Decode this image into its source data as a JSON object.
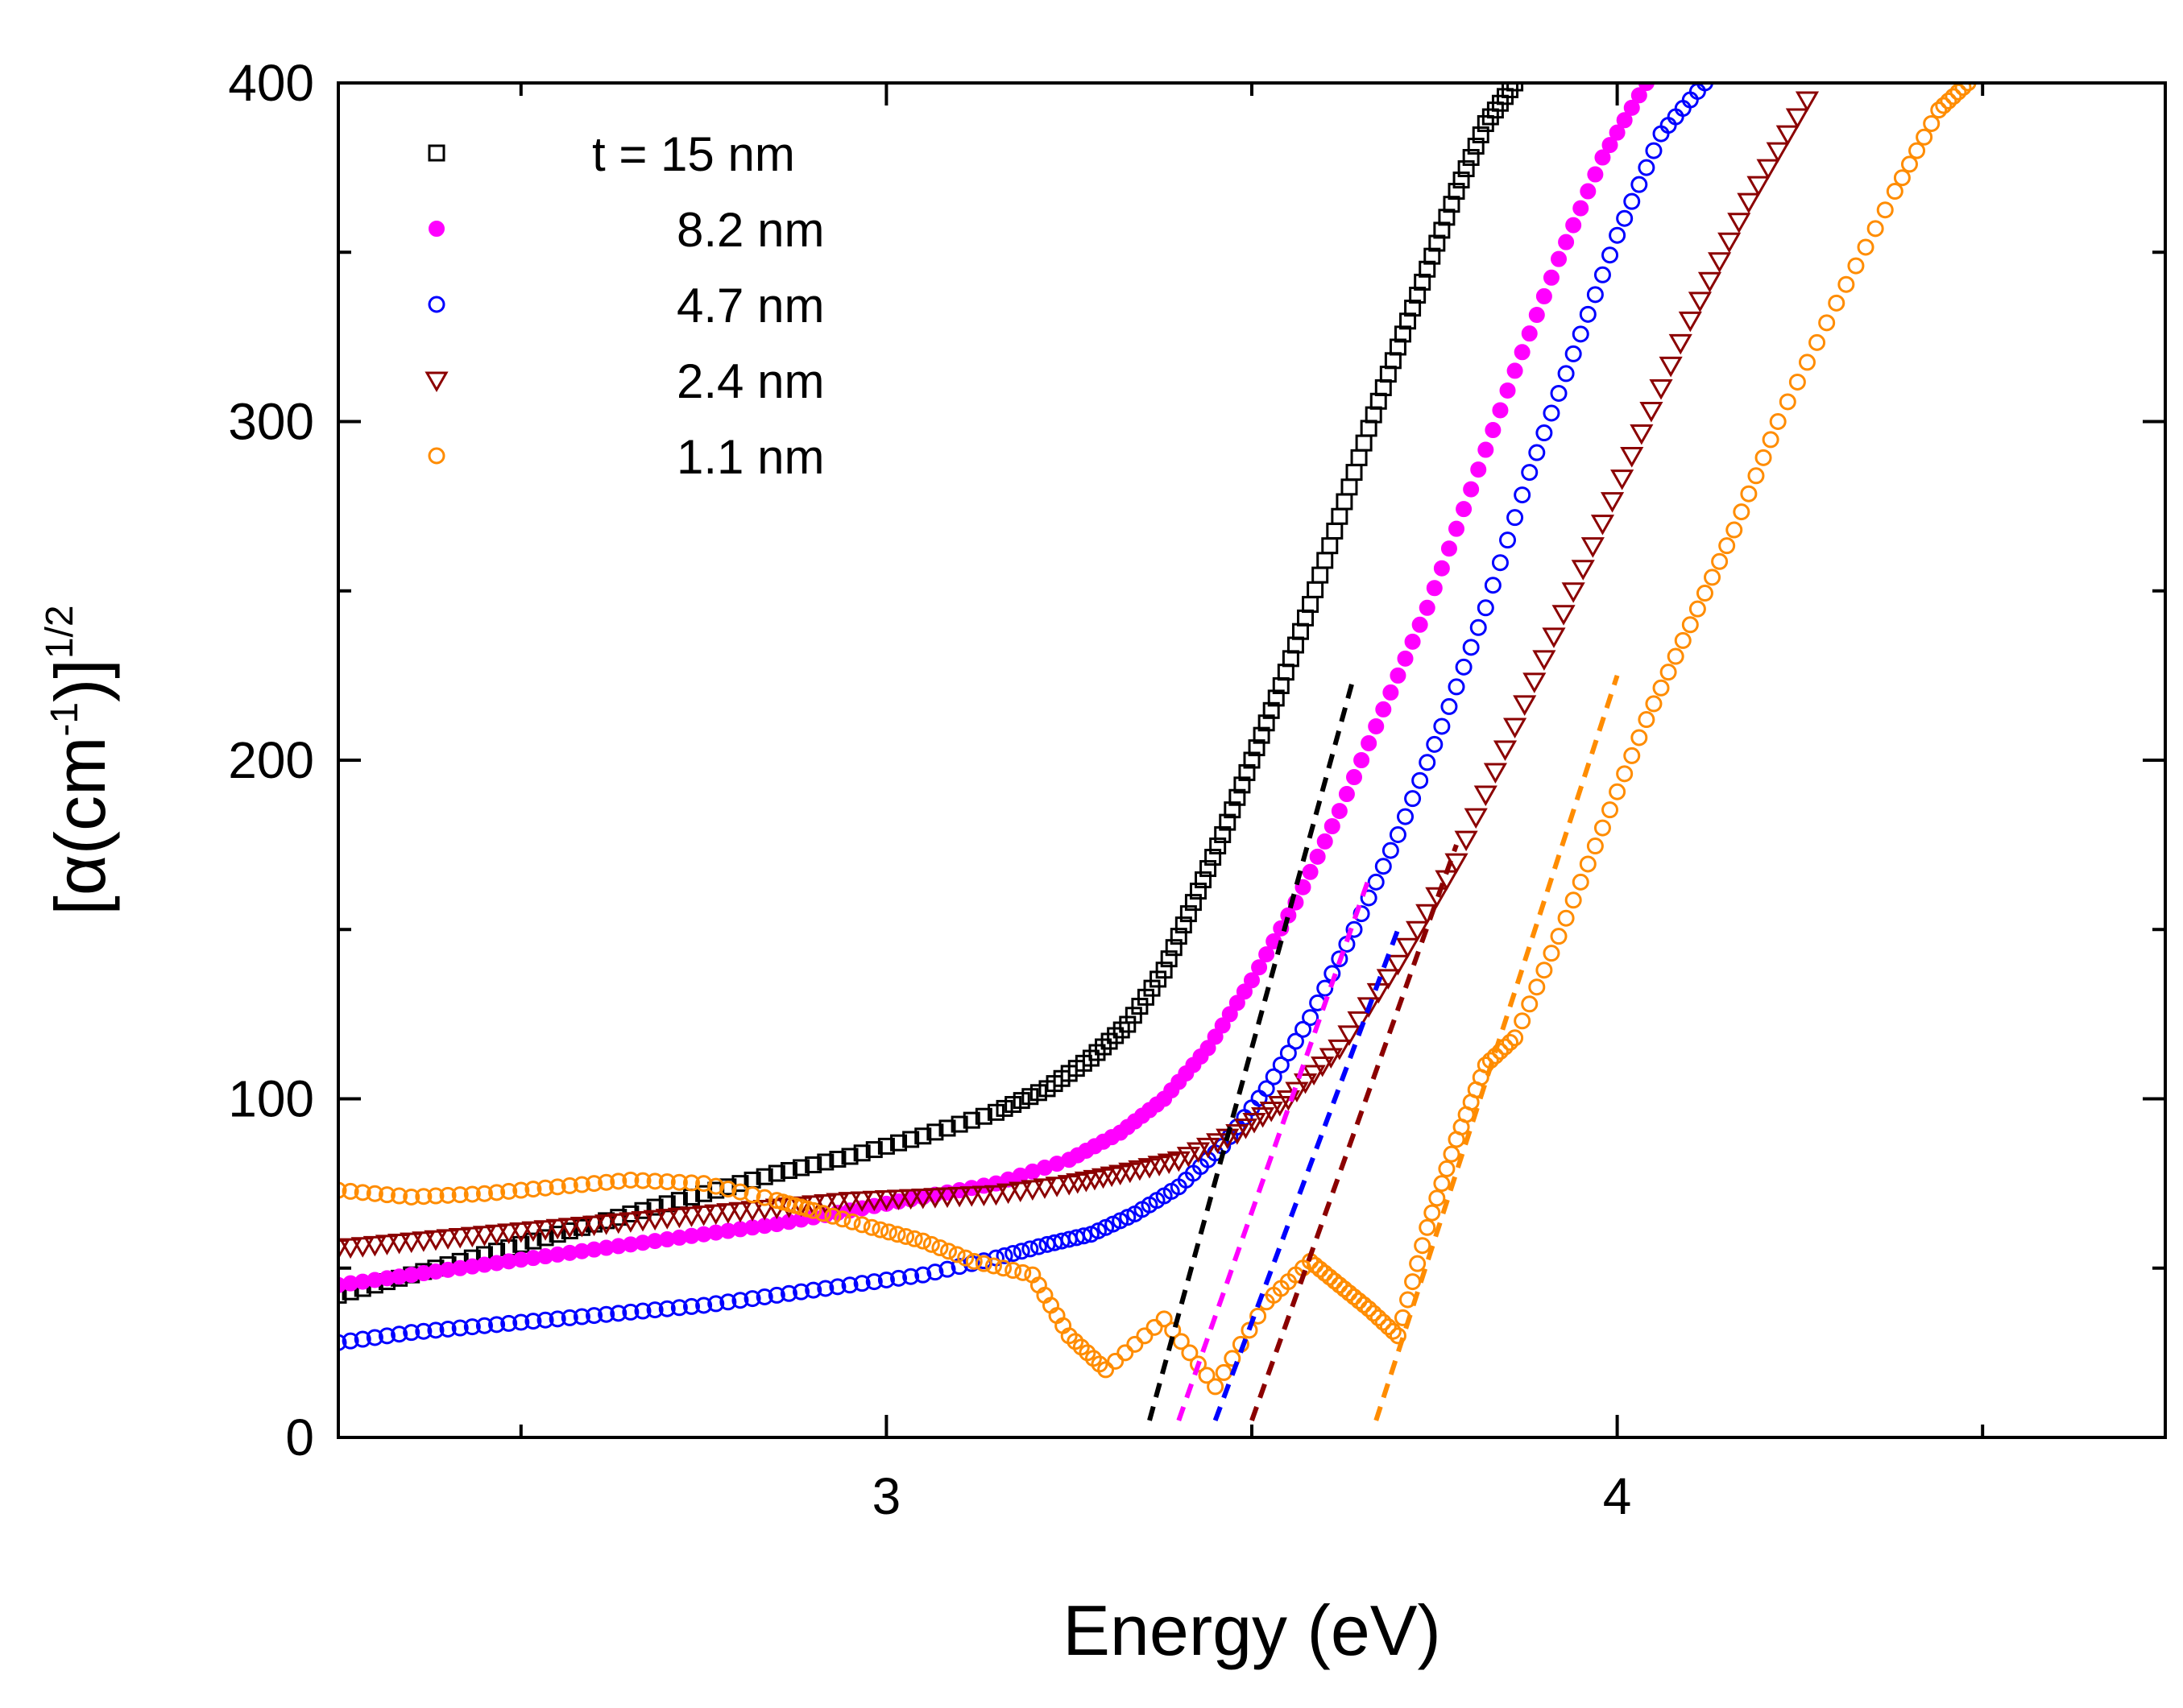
{
  "chart_data": {
    "type": "scatter",
    "title": "",
    "xlabel": "Energy (eV)",
    "ylabel_parts": {
      "open": "[",
      "alpha": "α",
      "paren_open": "(cm",
      "inner_sup": "-1",
      "paren_close": ")]",
      "outer_sup": "1/2"
    },
    "xlim": [
      2.25,
      4.75
    ],
    "ylim": [
      0,
      400
    ],
    "x_ticks": [
      {
        "value": 3,
        "label": "3"
      },
      {
        "value": 4,
        "label": "4"
      }
    ],
    "x_minor_ticks": [
      2.5,
      3.5,
      4.5
    ],
    "y_ticks": [
      {
        "value": 0,
        "label": "0"
      },
      {
        "value": 100,
        "label": "100"
      },
      {
        "value": 200,
        "label": "200"
      },
      {
        "value": 300,
        "label": "300"
      },
      {
        "value": 400,
        "label": "400"
      }
    ],
    "y_minor_ticks": [
      50,
      150,
      250,
      350
    ],
    "legend_position": "top-left",
    "series": [
      {
        "name": "t = 15 nm",
        "color": "#000000",
        "marker": "square-open",
        "x": [
          2.25,
          2.35,
          2.45,
          2.55,
          2.65,
          2.75,
          2.85,
          2.95,
          3.05,
          3.15,
          3.22,
          3.28,
          3.33,
          3.38,
          3.42,
          3.46,
          3.5,
          3.54,
          3.58,
          3.62,
          3.66,
          3.7,
          3.74,
          3.78,
          3.82,
          3.86
        ],
        "y": [
          42,
          48,
          54,
          60,
          66,
          72,
          78,
          83,
          89,
          96,
          103,
          112,
          122,
          138,
          158,
          178,
          200,
          222,
          246,
          272,
          298,
          322,
          345,
          368,
          388,
          400
        ],
        "fit_x": [
          3.36,
          3.64
        ],
        "fit_y": [
          5,
          225
        ]
      },
      {
        "name": "8.2 nm",
        "color": "#ff00ff",
        "marker": "circle-filled",
        "x": [
          2.25,
          2.35,
          2.45,
          2.55,
          2.65,
          2.75,
          2.85,
          2.95,
          3.05,
          3.15,
          3.25,
          3.32,
          3.38,
          3.44,
          3.5,
          3.56,
          3.62,
          3.68,
          3.74,
          3.8,
          3.86,
          3.92,
          3.98,
          4.04
        ],
        "y": [
          45,
          48,
          51,
          54,
          57,
          60,
          63,
          67,
          71,
          75,
          82,
          90,
          100,
          115,
          135,
          158,
          185,
          215,
          245,
          280,
          315,
          348,
          378,
          400
        ],
        "fit_x": [
          3.4,
          3.66
        ],
        "fit_y": [
          5,
          165
        ]
      },
      {
        "name": "4.7 nm",
        "color": "#0000ff",
        "marker": "circle-open",
        "x": [
          2.25,
          2.35,
          2.45,
          2.55,
          2.65,
          2.75,
          2.85,
          2.95,
          3.05,
          3.15,
          3.22,
          3.28,
          3.34,
          3.4,
          3.46,
          3.52,
          3.58,
          3.64,
          3.7,
          3.76,
          3.82,
          3.88,
          3.94,
          4.0,
          4.06,
          4.12
        ],
        "y": [
          28,
          31,
          33,
          35,
          37,
          39,
          42,
          45,
          48,
          53,
          57,
          60,
          66,
          74,
          86,
          103,
          124,
          150,
          178,
          210,
          245,
          285,
          320,
          355,
          385,
          400
        ],
        "fit_x": [
          3.45,
          3.7
        ],
        "fit_y": [
          5,
          150
        ]
      },
      {
        "name": "2.4 nm",
        "color": "#8b0000",
        "marker": "triangle-down-open",
        "x": [
          2.25,
          2.35,
          2.45,
          2.55,
          2.65,
          2.75,
          2.85,
          2.95,
          3.05,
          3.15,
          3.25,
          3.32,
          3.4,
          3.48,
          3.55,
          3.62,
          3.7,
          3.78,
          3.86,
          3.94,
          4.02,
          4.1,
          4.18,
          4.26
        ],
        "y": [
          56,
          58,
          60,
          62,
          64,
          66,
          68,
          70,
          71,
          72,
          75,
          78,
          82,
          90,
          100,
          115,
          140,
          170,
          210,
          250,
          290,
          330,
          365,
          395
        ],
        "fit_x": [
          3.5,
          3.78
        ],
        "fit_y": [
          5,
          175
        ]
      },
      {
        "name": "1.1 nm",
        "color": "#ff8c00",
        "marker": "circle-open",
        "x": [
          2.25,
          2.35,
          2.45,
          2.55,
          2.65,
          2.75,
          2.85,
          2.9,
          2.98,
          3.05,
          3.12,
          3.2,
          3.25,
          3.3,
          3.38,
          3.45,
          3.52,
          3.58,
          3.62,
          3.66,
          3.7,
          3.74,
          3.78,
          3.82,
          3.86,
          3.92,
          3.98,
          4.04,
          4.1,
          4.16,
          4.22,
          4.3,
          4.38,
          4.44,
          4.48
        ],
        "y": [
          73,
          71,
          72,
          74,
          76,
          75,
          70,
          67,
          62,
          58,
          52,
          48,
          30,
          20,
          35,
          15,
          40,
          52,
          45,
          38,
          30,
          62,
          88,
          110,
          118,
          148,
          180,
          212,
          240,
          268,
          300,
          335,
          368,
          392,
          400
        ],
        "fit_x": [
          3.67,
          4.0
        ],
        "fit_y": [
          5,
          225
        ]
      }
    ]
  }
}
